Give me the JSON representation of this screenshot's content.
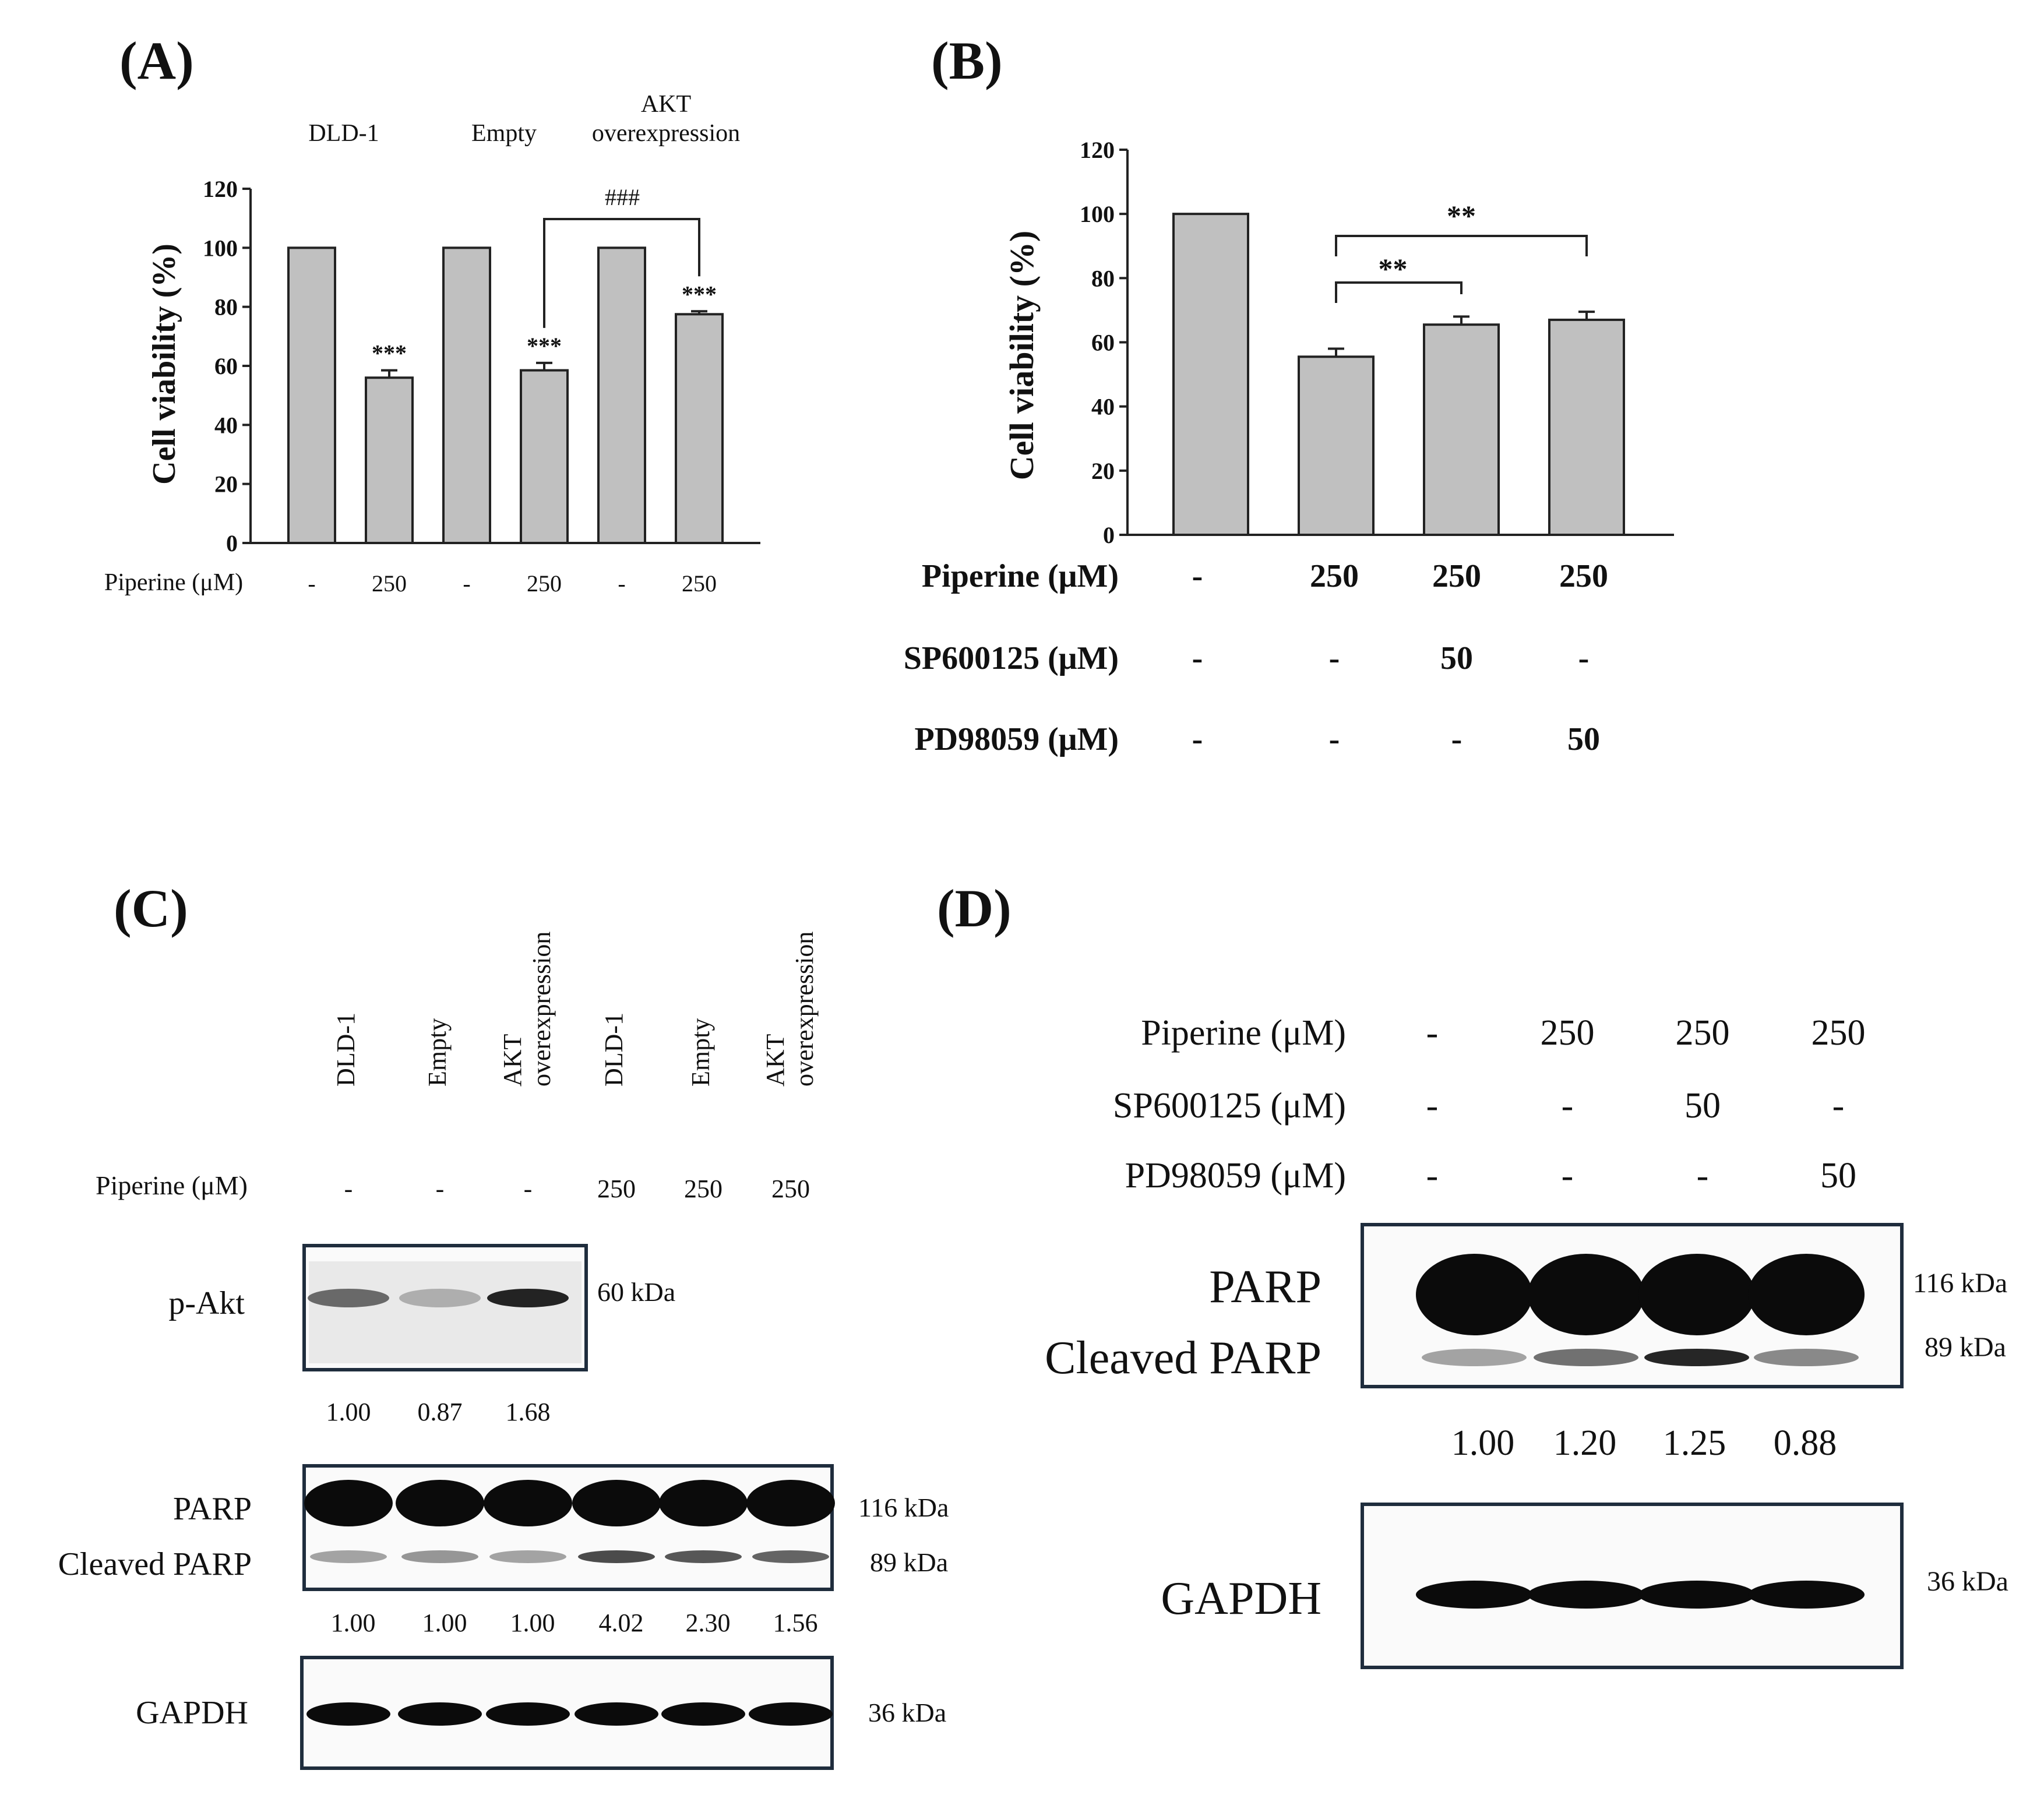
{
  "panels": {
    "A": {
      "label": "(A)",
      "groups": [
        "DLD-1",
        "Empty",
        "AKT overexpression"
      ],
      "treatment_label": "Piperine (μM)",
      "treatments": [
        "-",
        "250",
        "-",
        "250",
        "-",
        "250"
      ],
      "bracket_sig": "###"
    },
    "B": {
      "label": "(B)",
      "rows": [
        {
          "label": "Piperine (μM)",
          "values": [
            "-",
            "250",
            "250",
            "250"
          ]
        },
        {
          "label": "SP600125 (μM)",
          "values": [
            "-",
            "-",
            "50",
            "-"
          ]
        },
        {
          "label": "PD98059 (μM)",
          "values": [
            "-",
            "-",
            "-",
            "50"
          ]
        }
      ],
      "bracket_sigs": [
        "**",
        "**"
      ]
    },
    "C": {
      "label": "(C)",
      "lanes": [
        "DLD-1",
        "Empty",
        "AKT overexpression",
        "DLD-1",
        "Empty",
        "AKT overexpression"
      ],
      "treatment_label": "Piperine (μM)",
      "treatments": [
        "-",
        "-",
        "-",
        "250",
        "250",
        "250"
      ],
      "pakt_label": "p-Akt",
      "pakt_kda": "60 kDa",
      "pakt_quant": [
        "1.00",
        "0.87",
        "1.68"
      ],
      "parp_label": "PARP",
      "cleaved_label": "Cleaved PARP",
      "parp_kda": "116 kDa",
      "cleaved_kda": "89 kDa",
      "parp_quant": [
        "1.00",
        "1.00",
        "1.00",
        "4.02",
        "2.30",
        "1.56"
      ],
      "gapdh_label": "GAPDH",
      "gapdh_kda": "36 kDa",
      "pakt_intensity": [
        0.55,
        0.25,
        0.85
      ],
      "cleaved_intensity": [
        0.35,
        0.4,
        0.35,
        0.7,
        0.65,
        0.6
      ]
    },
    "D": {
      "label": "(D)",
      "rows": [
        {
          "label": "Piperine (μM)",
          "values": [
            "-",
            "250",
            "250",
            "250"
          ]
        },
        {
          "label": "SP600125 (μM)",
          "values": [
            "-",
            "-",
            "50",
            "-"
          ]
        },
        {
          "label": "PD98059 (μM)",
          "values": [
            "-",
            "-",
            "-",
            "50"
          ]
        }
      ],
      "parp_label": "PARP",
      "cleaved_label": "Cleaved PARP",
      "parp_kda": "116 kDa",
      "cleaved_kda": "89 kDa",
      "quant": [
        "1.00",
        "1.20",
        "1.25",
        "0.88"
      ],
      "gapdh_label": "GAPDH",
      "gapdh_kda": "36 kDa",
      "cleaved_intensity": [
        0.35,
        0.55,
        0.85,
        0.45
      ]
    }
  },
  "chart_data": [
    {
      "type": "bar",
      "panel": "A",
      "categories": [
        "-",
        "250",
        "-",
        "250",
        "-",
        "250"
      ],
      "values": [
        100,
        56,
        100,
        58.5,
        100,
        77.5
      ],
      "errors": [
        0,
        2.5,
        0,
        2.5,
        0,
        1
      ],
      "significance": [
        "",
        "***",
        "",
        "***",
        "",
        "***"
      ],
      "title": "",
      "xlabel": "Piperine (μM)",
      "ylabel": "Cell viability (%)",
      "ylim": [
        0,
        120
      ],
      "yticks": [
        0,
        20,
        40,
        60,
        80,
        100,
        120
      ],
      "grid": false
    },
    {
      "type": "bar",
      "panel": "B",
      "categories": [
        "-",
        "250",
        "250",
        "250"
      ],
      "values": [
        100,
        55.5,
        65.5,
        67
      ],
      "errors": [
        0,
        2.5,
        2.5,
        2.5
      ],
      "title": "",
      "xlabel": "",
      "ylabel": "Cell viability (%)",
      "ylim": [
        0,
        120
      ],
      "yticks": [
        0,
        20,
        40,
        60,
        80,
        100,
        120
      ],
      "grid": false
    }
  ]
}
